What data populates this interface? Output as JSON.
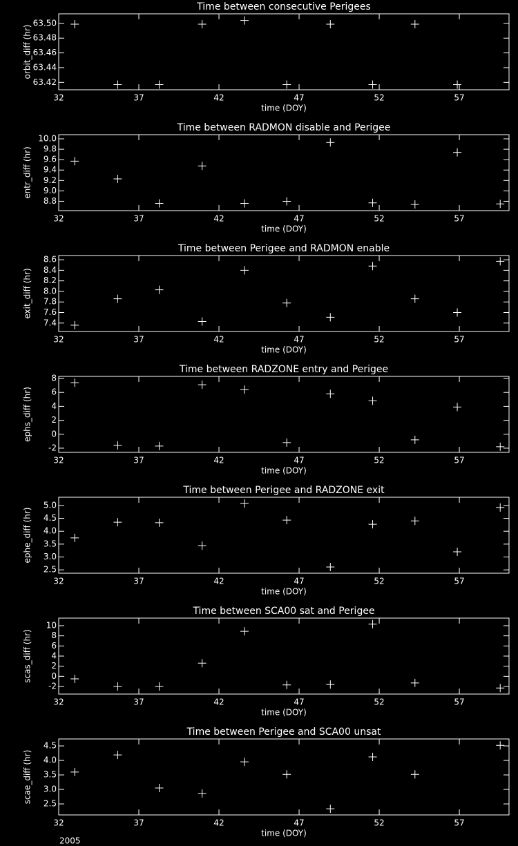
{
  "chart_data": [
    {
      "type": "scatter",
      "title": "Time between consecutive Perigees",
      "xlabel": "time (DOY)",
      "ylabel": "orbit_diff (hr)",
      "color": "#ffffff",
      "x": [
        33.0,
        35.68,
        38.27,
        40.95,
        43.59,
        46.23,
        48.95,
        51.59,
        54.23,
        56.87
      ],
      "values": [
        63.499,
        63.417,
        63.417,
        63.499,
        63.504,
        63.417,
        63.499,
        63.417,
        63.499,
        63.417
      ],
      "xlim": [
        32,
        60.1
      ],
      "xticks": [
        32,
        37,
        42,
        47,
        52,
        57
      ],
      "ylim": [
        63.41,
        63.513
      ],
      "yticks": [
        {
          "value": 63.42,
          "label": "63.42"
        },
        {
          "value": 63.44,
          "label": "63.44"
        },
        {
          "value": 63.46,
          "label": "63.46"
        },
        {
          "value": 63.48,
          "label": "63.48"
        },
        {
          "value": 63.5,
          "label": "63.50"
        }
      ]
    },
    {
      "type": "scatter",
      "title": "Time between RADMON disable and Perigee",
      "xlabel": "time (DOY)",
      "ylabel": "entr_diff (hr)",
      "color": "#ffffff",
      "x": [
        33.0,
        35.68,
        38.27,
        40.95,
        43.59,
        46.23,
        48.95,
        51.59,
        54.23,
        56.87,
        59.55
      ],
      "values": [
        9.57,
        9.23,
        8.76,
        9.48,
        8.76,
        8.8,
        9.93,
        8.77,
        8.74,
        9.74,
        8.75
      ],
      "xlim": [
        32,
        60.1
      ],
      "xticks": [
        32,
        37,
        42,
        47,
        52,
        57
      ],
      "ylim": [
        8.62,
        10.08
      ],
      "yticks": [
        8.8,
        {
          "value": 9,
          "label": "9.0"
        },
        9.2,
        9.4,
        9.6,
        9.8,
        {
          "value": 10,
          "label": "10.0"
        }
      ]
    },
    {
      "type": "scatter",
      "title": "Time between Perigee and RADMON enable",
      "xlabel": "time (DOY)",
      "ylabel": "exit_diff (hr)",
      "color": "#ffffff",
      "x": [
        33.0,
        35.68,
        38.27,
        40.95,
        43.59,
        46.23,
        48.95,
        51.59,
        54.23,
        56.87,
        59.55
      ],
      "values": [
        7.36,
        7.86,
        8.03,
        7.43,
        8.4,
        7.78,
        7.51,
        8.48,
        7.86,
        7.6,
        8.57
      ],
      "xlim": [
        32,
        60.1
      ],
      "xticks": [
        32,
        37,
        42,
        47,
        52,
        57
      ],
      "ylim": [
        7.24,
        8.68
      ],
      "yticks": [
        7.4,
        7.6,
        7.8,
        {
          "value": 8,
          "label": "8.0"
        },
        8.2,
        8.4,
        8.6
      ]
    },
    {
      "type": "scatter",
      "title": "Time between RADZONE entry and Perigee",
      "xlabel": "time (DOY)",
      "ylabel": "ephs_diff (hr)",
      "color": "#ffffff",
      "x": [
        33.0,
        35.68,
        38.27,
        40.95,
        43.59,
        46.23,
        48.95,
        51.59,
        54.23,
        56.87,
        59.55
      ],
      "values": [
        7.4,
        -1.6,
        -1.7,
        7.1,
        6.4,
        -1.2,
        5.8,
        4.8,
        -0.8,
        3.9,
        -1.8
      ],
      "xlim": [
        32,
        60.1
      ],
      "xticks": [
        32,
        37,
        42,
        47,
        52,
        57
      ],
      "ylim": [
        -2.6,
        8.3
      ],
      "yticks": [
        -2,
        0,
        2,
        4,
        6,
        8
      ]
    },
    {
      "type": "scatter",
      "title": "Time between Perigee and RADZONE exit",
      "xlabel": "time (DOY)",
      "ylabel": "ephe_diff (hr)",
      "color": "#ffffff",
      "x": [
        33.0,
        35.68,
        38.27,
        40.95,
        43.59,
        46.23,
        48.95,
        51.59,
        54.23,
        56.87,
        59.55
      ],
      "values": [
        3.74,
        4.35,
        4.33,
        3.44,
        5.08,
        4.43,
        2.61,
        4.27,
        4.4,
        3.2,
        4.92
      ],
      "xlim": [
        32,
        60.1
      ],
      "xticks": [
        32,
        37,
        42,
        47,
        52,
        57
      ],
      "ylim": [
        2.37,
        5.32
      ],
      "yticks": [
        2.5,
        {
          "value": 3,
          "label": "3.0"
        },
        3.5,
        {
          "value": 4,
          "label": "4.0"
        },
        4.5,
        {
          "value": 5,
          "label": "5.0"
        }
      ]
    },
    {
      "type": "scatter",
      "title": "Time between SCA00 sat and Perigee",
      "xlabel": "time (DOY)",
      "ylabel": "scas_diff (hr)",
      "color": "#ffffff",
      "x": [
        33.0,
        35.68,
        38.27,
        40.95,
        43.59,
        46.23,
        48.95,
        51.59,
        54.23,
        59.55
      ],
      "values": [
        -0.5,
        -2.0,
        -2.0,
        2.6,
        8.9,
        -1.7,
        -1.6,
        10.3,
        -1.3,
        -2.3
      ],
      "xlim": [
        32,
        60.1
      ],
      "xticks": [
        32,
        37,
        42,
        47,
        52,
        57
      ],
      "ylim": [
        -3.5,
        11.5
      ],
      "yticks": [
        -2,
        0,
        2,
        4,
        6,
        8,
        10
      ]
    },
    {
      "type": "scatter",
      "title": "Time between Perigee and SCA00 unsat",
      "xlabel": "time (DOY)",
      "ylabel": "scae_diff (hr)",
      "color": "#ffffff",
      "x": [
        33.0,
        35.68,
        38.27,
        40.95,
        43.59,
        46.23,
        48.95,
        51.59,
        54.23,
        59.55
      ],
      "values": [
        3.6,
        4.19,
        3.05,
        2.86,
        3.95,
        3.52,
        2.33,
        4.12,
        3.52,
        4.52
      ],
      "xlim": [
        32,
        60.1
      ],
      "xticks": [
        32,
        37,
        42,
        47,
        52,
        57
      ],
      "ylim": [
        2.12,
        4.74
      ],
      "yticks": [
        2.5,
        {
          "value": 3,
          "label": "3.0"
        },
        3.5,
        {
          "value": 4,
          "label": "4.0"
        },
        4.5
      ]
    }
  ],
  "footer": "2005"
}
